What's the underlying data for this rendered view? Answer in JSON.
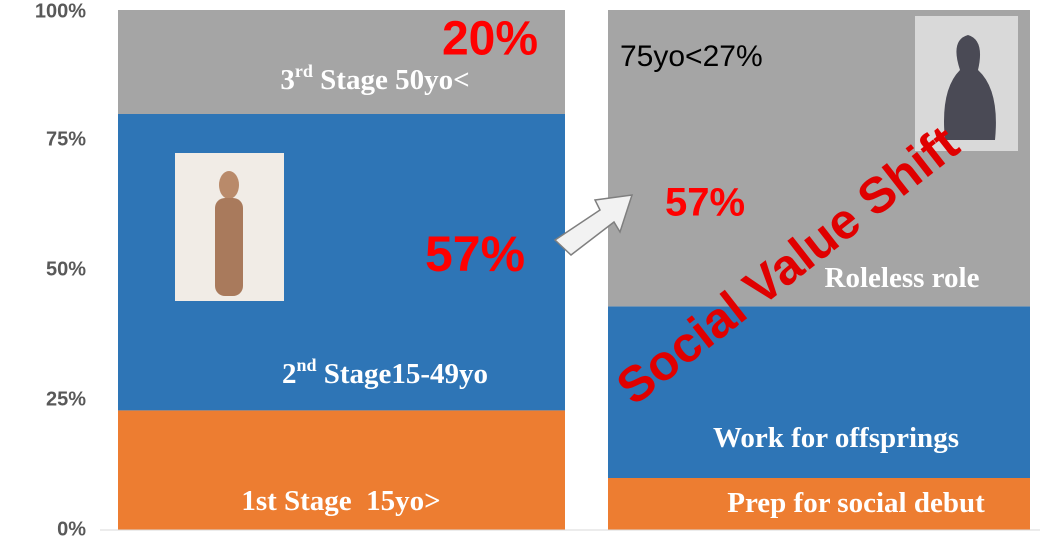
{
  "chart_data": {
    "type": "bar",
    "stacked": true,
    "categories": [
      null,
      null
    ],
    "ylim": [
      0,
      100
    ],
    "yticks": [
      {
        "value": 0,
        "label": "0%"
      },
      {
        "value": 25,
        "label": "25%"
      },
      {
        "value": 50,
        "label": "50%"
      },
      {
        "value": 75,
        "label": "75%"
      },
      {
        "value": 100,
        "label": "100%"
      }
    ],
    "series": [
      {
        "color": "#ed7d31",
        "values": [
          23,
          10
        ],
        "segment_labels": [
          [
            "1st Stage  15yo>"
          ],
          [
            "Prep for social debut"
          ]
        ]
      },
      {
        "color": "#2e75b6",
        "values": [
          57,
          33
        ],
        "value_labels": [
          "57%",
          null
        ],
        "segment_labels": [
          [
            "2",
            "nd",
            " Stage15-49yo"
          ],
          [
            "Work for offsprings"
          ]
        ]
      },
      {
        "color": "#a5a5a5",
        "values": [
          20,
          57
        ],
        "value_labels": [
          "20%",
          "57%"
        ],
        "segment_labels": [
          [
            "3",
            "rd",
            " Stage 50yo<"
          ],
          [
            "Roleless role"
          ]
        ]
      }
    ],
    "annotations": [
      "75yo<27%",
      "Social Value Shift"
    ]
  }
}
